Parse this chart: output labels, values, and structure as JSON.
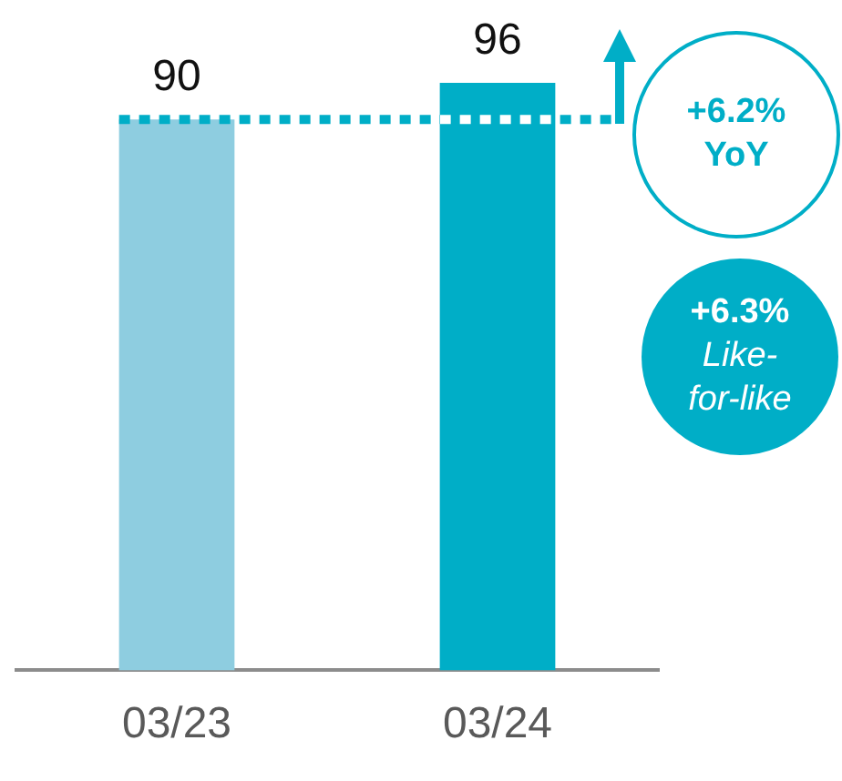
{
  "chart_data": {
    "type": "bar",
    "categories": [
      "03/23",
      "03/24"
    ],
    "values": [
      90,
      96
    ],
    "colors": [
      "#8ecde0",
      "#00aec7"
    ],
    "data_labels": true,
    "ref_lines": [
      {
        "axis": "y",
        "value": 90,
        "color": "#00aec7",
        "line_style": "dotted"
      }
    ],
    "annotations": [
      "+6.2% YoY",
      "+6.3% Like-for-like"
    ],
    "grid": false,
    "legend": false
  }
}
